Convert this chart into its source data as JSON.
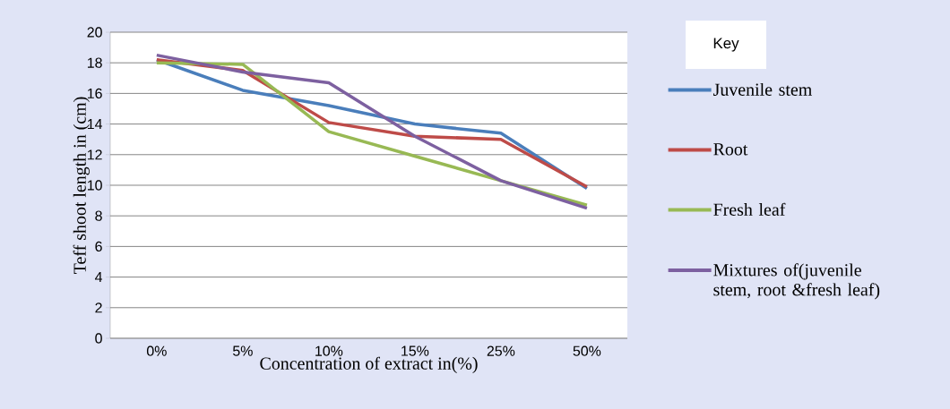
{
  "chart_data": {
    "type": "line",
    "xlabel": "Concentration of extract in(%)",
    "ylabel": "Teff shoot length in (cm)",
    "legend_title": "Key",
    "categories": [
      "0%",
      "5%",
      "10%",
      "15%",
      "25%",
      "50%"
    ],
    "series": [
      {
        "name": "Juvenile stem",
        "color": "#4a7ebb",
        "values": [
          18.2,
          16.2,
          15.2,
          14.0,
          13.4,
          9.8
        ]
      },
      {
        "name": "Root",
        "color": "#be4b48",
        "values": [
          18.2,
          17.5,
          14.1,
          13.2,
          13.0,
          9.9
        ]
      },
      {
        "name": "Fresh leaf",
        "color": "#98b954",
        "values": [
          18.0,
          17.9,
          13.5,
          11.9,
          10.3,
          8.7
        ]
      },
      {
        "name": "Mixtures of(juvenile stem, root &fresh leaf)",
        "color": "#7d60a0",
        "values": [
          18.5,
          17.4,
          16.7,
          13.2,
          10.3,
          8.5
        ]
      }
    ],
    "ylim": [
      0,
      20
    ],
    "yticks": [
      0,
      2,
      4,
      6,
      8,
      10,
      12,
      14,
      16,
      18,
      20
    ],
    "grid": "y",
    "legend": "right",
    "marker": "none",
    "line_style": "solid"
  }
}
